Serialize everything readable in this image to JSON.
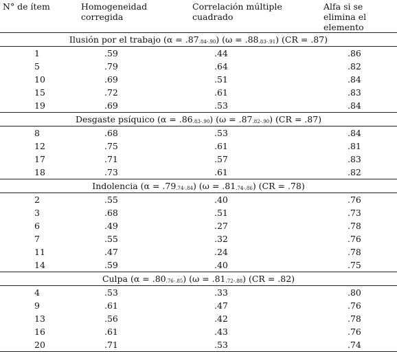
{
  "headers": {
    "item": "N° de ítem",
    "homog": "Homogeneidad corregida",
    "corr": "Correlación múltiple cuadrado",
    "alfa": "Alfa si se elimina el elemento"
  },
  "sections": [
    {
      "name": "Ilusión por el trabajo",
      "alpha": ".87",
      "alpha_ci": ".84-.90",
      "omega": ".88",
      "omega_ci": ".83-.91",
      "cr": ".87",
      "rows": [
        {
          "item": "1",
          "homog": ".59",
          "corr": ".44",
          "alfa": ".86"
        },
        {
          "item": "5",
          "homog": ".79",
          "corr": ".64",
          "alfa": ".82"
        },
        {
          "item": "10",
          "homog": ".69",
          "corr": ".51",
          "alfa": ".84"
        },
        {
          "item": "15",
          "homog": ".72",
          "corr": ".61",
          "alfa": ".83"
        },
        {
          "item": "19",
          "homog": ".69",
          "corr": ".53",
          "alfa": ".84"
        }
      ]
    },
    {
      "name": "Desgaste psíquico",
      "alpha": ".86",
      "alpha_ci": ".83-.90",
      "omega": ".87",
      "omega_ci": ".82-.90",
      "cr": ".87",
      "rows": [
        {
          "item": "8",
          "homog": ".68",
          "corr": ".53",
          "alfa": ".84"
        },
        {
          "item": "12",
          "homog": ".75",
          "corr": ".61",
          "alfa": ".81"
        },
        {
          "item": "17",
          "homog": ".71",
          "corr": ".57",
          "alfa": ".83"
        },
        {
          "item": "18",
          "homog": ".73",
          "corr": ".61",
          "alfa": ".82"
        }
      ]
    },
    {
      "name": "Indolencia",
      "alpha": ".79",
      "alpha_ci": ".74-.84",
      "omega": ".81",
      "omega_ci": ".74-.86",
      "cr": ".78",
      "rows": [
        {
          "item": "2",
          "homog": ".55",
          "corr": ".40",
          "alfa": ".76"
        },
        {
          "item": "3",
          "homog": ".68",
          "corr": ".51",
          "alfa": ".73"
        },
        {
          "item": "6",
          "homog": ".49",
          "corr": ".27",
          "alfa": ".78"
        },
        {
          "item": "7",
          "homog": ".55",
          "corr": ".32",
          "alfa": ".76"
        },
        {
          "item": "11",
          "homog": ".47",
          "corr": ".24",
          "alfa": ".78"
        },
        {
          "item": "14",
          "homog": ".59",
          "corr": ".40",
          "alfa": ".75"
        }
      ]
    },
    {
      "name": "Culpa",
      "alpha": ".80",
      "alpha_ci": ".76-.85",
      "omega": ".81",
      "omega_ci": ".72-.88",
      "cr": ".82",
      "rows": [
        {
          "item": "4",
          "homog": ".53",
          "corr": ".33",
          "alfa": ".80"
        },
        {
          "item": "9",
          "homog": ".61",
          "corr": ".47",
          "alfa": ".76"
        },
        {
          "item": "13",
          "homog": ".56",
          "corr": ".42",
          "alfa": ".78"
        },
        {
          "item": "16",
          "homog": ".61",
          "corr": ".43",
          "alfa": ".76"
        },
        {
          "item": "20",
          "homog": ".71",
          "corr": ".53",
          "alfa": ".74"
        }
      ]
    }
  ]
}
